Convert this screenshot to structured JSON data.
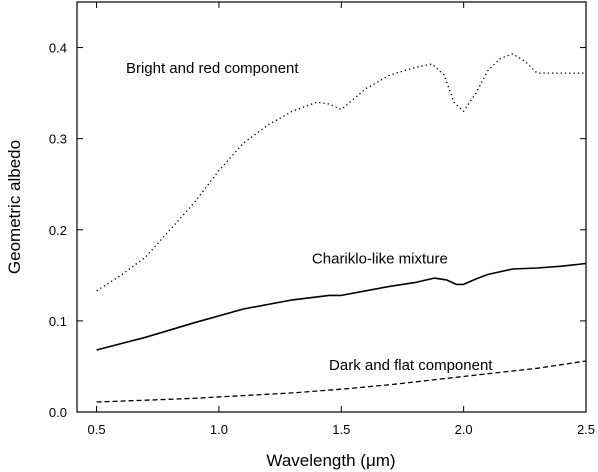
{
  "chart_data": {
    "type": "line",
    "title": "",
    "xlabel": "Wavelength (μm)",
    "ylabel": "Geometric albedo",
    "xlim": [
      0.42,
      2.5
    ],
    "ylim": [
      0.0,
      0.45
    ],
    "grid": false,
    "legend": "none",
    "x_ticks": [
      {
        "value": 0.5,
        "label": "0.5"
      },
      {
        "value": 1.0,
        "label": "1.0"
      },
      {
        "value": 1.5,
        "label": "1.5"
      },
      {
        "value": 2.0,
        "label": "2.0"
      },
      {
        "value": 2.5,
        "label": "2.5"
      }
    ],
    "y_ticks": [
      {
        "value": 0.0,
        "label": "0.0"
      },
      {
        "value": 0.1,
        "label": "0.1"
      },
      {
        "value": 0.2,
        "label": "0.2"
      },
      {
        "value": 0.3,
        "label": "0.3"
      },
      {
        "value": 0.4,
        "label": "0.4"
      }
    ],
    "series": [
      {
        "name": "Bright and red component",
        "style": "dotted",
        "color": "#000000",
        "x": [
          0.5,
          0.6,
          0.7,
          0.8,
          0.9,
          1.0,
          1.1,
          1.2,
          1.3,
          1.4,
          1.45,
          1.5,
          1.6,
          1.7,
          1.8,
          1.87,
          1.92,
          1.96,
          2.0,
          2.05,
          2.1,
          2.15,
          2.2,
          2.25,
          2.3,
          2.4,
          2.5
        ],
        "y": [
          0.133,
          0.15,
          0.17,
          0.2,
          0.23,
          0.265,
          0.295,
          0.315,
          0.33,
          0.34,
          0.338,
          0.332,
          0.355,
          0.37,
          0.378,
          0.382,
          0.37,
          0.34,
          0.33,
          0.35,
          0.375,
          0.388,
          0.393,
          0.385,
          0.372,
          0.372,
          0.372
        ]
      },
      {
        "name": "Chariklo-like mixture",
        "style": "solid",
        "color": "#000000",
        "x": [
          0.5,
          0.7,
          0.9,
          1.1,
          1.3,
          1.45,
          1.5,
          1.6,
          1.7,
          1.8,
          1.88,
          1.93,
          1.97,
          2.0,
          2.05,
          2.1,
          2.2,
          2.3,
          2.4,
          2.5
        ],
        "y": [
          0.068,
          0.082,
          0.098,
          0.113,
          0.123,
          0.128,
          0.128,
          0.133,
          0.138,
          0.142,
          0.147,
          0.145,
          0.14,
          0.14,
          0.146,
          0.151,
          0.157,
          0.158,
          0.16,
          0.163
        ]
      },
      {
        "name": "Dark and flat component",
        "style": "dashed",
        "color": "#000000",
        "x": [
          0.5,
          0.7,
          0.9,
          1.1,
          1.3,
          1.5,
          1.7,
          1.9,
          2.1,
          2.3,
          2.5
        ],
        "y": [
          0.011,
          0.013,
          0.015,
          0.018,
          0.021,
          0.025,
          0.03,
          0.036,
          0.042,
          0.048,
          0.056
        ]
      }
    ],
    "annotations": [
      {
        "text": "Bright and red component",
        "x": 0.62,
        "y": 0.372
      },
      {
        "text": "Chariklo-like mixture",
        "x": 1.38,
        "y": 0.163
      },
      {
        "text": "Dark and flat component",
        "x": 1.45,
        "y": 0.046
      }
    ]
  }
}
